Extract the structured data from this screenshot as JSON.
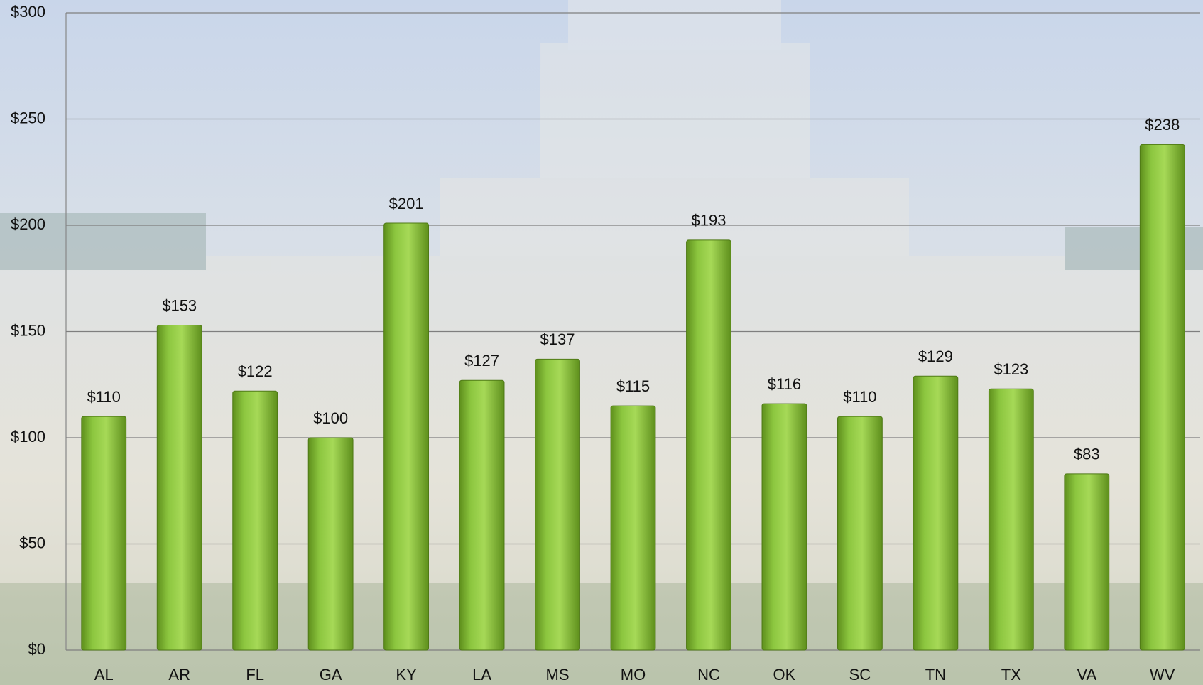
{
  "chart_data": {
    "type": "bar",
    "categories": [
      "AL",
      "AR",
      "FL",
      "GA",
      "KY",
      "LA",
      "MS",
      "MO",
      "NC",
      "OK",
      "SC",
      "TN",
      "TX",
      "VA",
      "WV"
    ],
    "values": [
      110,
      153,
      122,
      100,
      201,
      127,
      137,
      115,
      193,
      116,
      110,
      129,
      123,
      83,
      238
    ],
    "value_labels": [
      "$110",
      "$153",
      "$122",
      "$100",
      "$201",
      "$127",
      "$137",
      "$115",
      "$193",
      "$116",
      "$110",
      "$129",
      "$123",
      "$83",
      "$238"
    ],
    "color": "#8cc63f",
    "ylim": [
      0,
      300
    ],
    "yticks": [
      {
        "value": 0,
        "label": "$0"
      },
      {
        "value": 50,
        "label": "$50"
      },
      {
        "value": 100,
        "label": "$100"
      },
      {
        "value": 150,
        "label": "$150"
      },
      {
        "value": 200,
        "label": "$200"
      },
      {
        "value": 250,
        "label": "$250"
      },
      {
        "value": 300,
        "label": "$300"
      }
    ],
    "grid": true
  }
}
